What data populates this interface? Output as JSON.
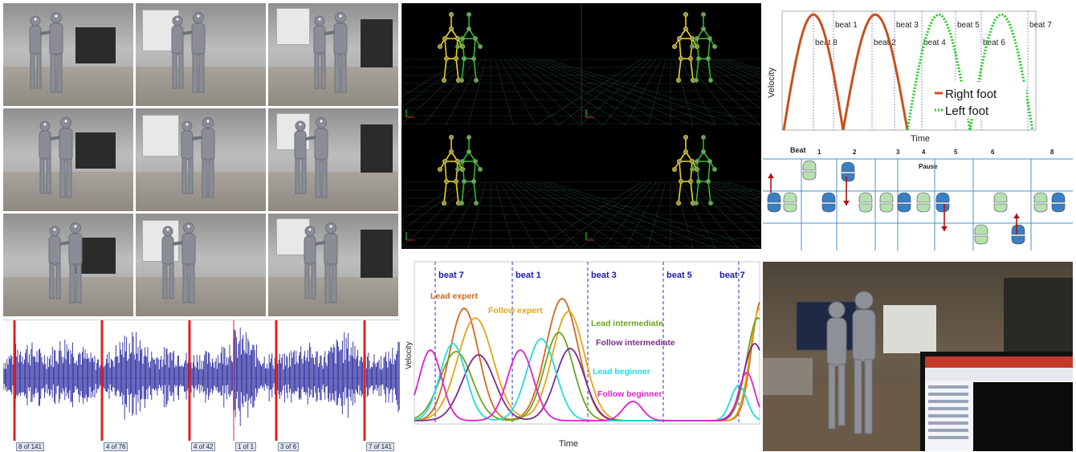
{
  "velocity_feet": {
    "ylabel": "Velocity",
    "xlabel": "Time",
    "beats": [
      "beat 8",
      "beat 1",
      "beat 2",
      "beat 3",
      "beat 4",
      "beat 5",
      "beat 6",
      "beat 7"
    ],
    "legend": [
      {
        "name": "Right foot",
        "color": "#c8501e"
      },
      {
        "name": "Left foot",
        "color": "#22cc22"
      }
    ]
  },
  "footsteps": {
    "title": "Beat",
    "beats": [
      "1",
      "2",
      "3",
      "4",
      "5",
      "6",
      "8"
    ],
    "pause": "Pause",
    "colors": {
      "lead": "#3a7fc1",
      "follow": "#b7e0b0",
      "arrow": "#b01010",
      "line": "#4a90c8"
    }
  },
  "velocity_dancers": {
    "ylabel": "Velocity",
    "xlabel": "Time",
    "beats": [
      "beat 7",
      "beat 1",
      "beat 3",
      "beat 5",
      "beat 7"
    ],
    "series": [
      {
        "name": "Lead expert",
        "color": "#d2691e"
      },
      {
        "name": "Follow expert",
        "color": "#e8a317"
      },
      {
        "name": "Lead intermediate",
        "color": "#6aa521"
      },
      {
        "name": "Follow intermediate",
        "color": "#7a2a8a"
      },
      {
        "name": "Lead beginner",
        "color": "#22dddd"
      },
      {
        "name": "Follow beginner",
        "color": "#e020d0"
      }
    ]
  },
  "audio": {
    "segments": [
      "8 of 141",
      "4 of 76",
      "4 of 42",
      "1 of 1",
      "3 of 6",
      "7 of 141"
    ],
    "colors": {
      "wave": "#2a2aa0",
      "marker": "#e02020",
      "bg": "#ffffff"
    }
  }
}
